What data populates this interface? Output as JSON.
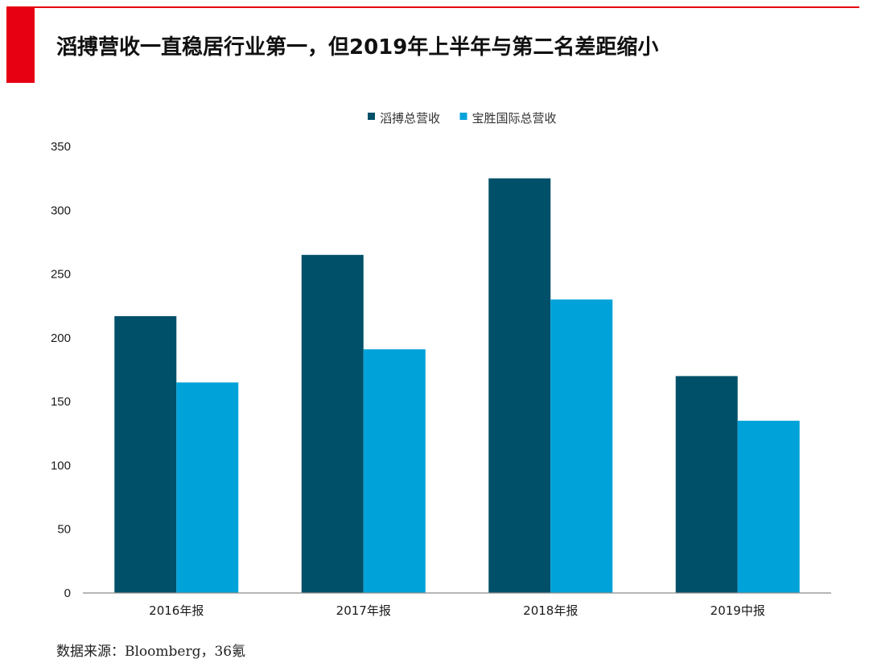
{
  "page": {
    "title": "滔搏营收一直稳居行业第一，但2019年上半年与第二名差距缩小",
    "source": "数据来源：Bloomberg，36氪"
  },
  "colors": {
    "accent": "#e60012",
    "series1": "#005069",
    "series2": "#00a3d9"
  },
  "chart_data": {
    "type": "bar",
    "categories": [
      "2016年报",
      "2017年报",
      "2018年报",
      "2019中报"
    ],
    "series": [
      {
        "name": "滔搏总营收",
        "values": [
          217,
          265,
          325,
          170
        ]
      },
      {
        "name": "宝胜国际总营收",
        "values": [
          165,
          191,
          230,
          135
        ]
      }
    ],
    "title": "",
    "xlabel": "",
    "ylabel": "",
    "ylim": [
      0,
      350
    ],
    "yticks": [
      0,
      50,
      100,
      150,
      200,
      250,
      300,
      350
    ],
    "grid": false,
    "legend": "top-center"
  }
}
